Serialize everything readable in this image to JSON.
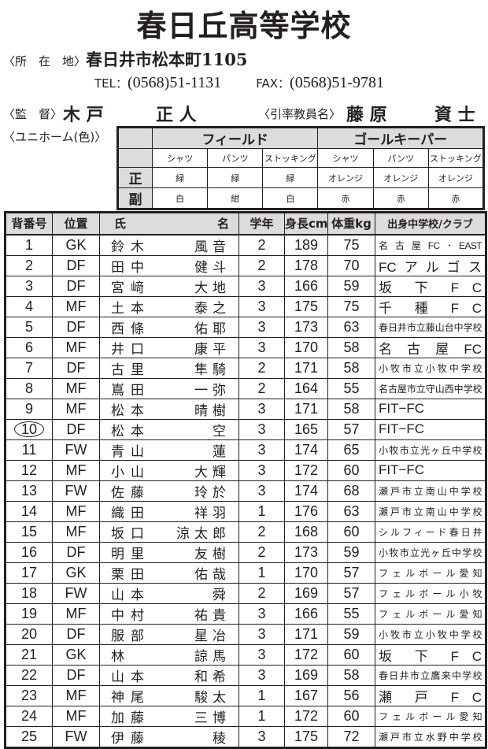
{
  "title": "春日丘高等学校",
  "address": {
    "label": "〈所　在　地〉",
    "value": "春日井市松本町1105"
  },
  "contact": {
    "tel_label": "TEL：",
    "tel": "(0568)51-1131",
    "fax_label": "FAX：",
    "fax": "(0568)51-9781"
  },
  "coach": {
    "label": "〈監　督〉",
    "family": "木 戸",
    "given": "正 人",
    "teacher_label": "〈引率教員名〉",
    "teacher_family": "藤 原",
    "teacher_given": "資 士"
  },
  "uniform": {
    "label": "〈ユニホーム(色)〉",
    "groups": [
      "フィールド",
      "ゴールキーパー"
    ],
    "items": [
      "シャツ",
      "パンツ",
      "ストッキング",
      "シャツ",
      "パンツ",
      "ストッキング"
    ],
    "rows": [
      {
        "label": "正",
        "values": [
          "緑",
          "緑",
          "緑",
          "オレンジ",
          "オレンジ",
          "オレンジ"
        ]
      },
      {
        "label": "副",
        "values": [
          "白",
          "紺",
          "白",
          "赤",
          "赤",
          "赤"
        ]
      }
    ]
  },
  "roster": {
    "headers": {
      "number": "背番号",
      "position": "位置",
      "name_family": "氏",
      "name_given": "名",
      "grade": "学年",
      "height": "身長cm",
      "weight": "体重kg",
      "club": "出身中学校/クラブ"
    },
    "captain_number": "10",
    "players": [
      {
        "no": "1",
        "pos": "GK",
        "family": "鈴木",
        "given": "風音",
        "grade": "2",
        "height": "189",
        "weight": "75",
        "club": "名古屋FC･EAST"
      },
      {
        "no": "2",
        "pos": "DF",
        "family": "田中",
        "given": "健斗",
        "grade": "2",
        "height": "178",
        "weight": "70",
        "club": "FCアルゴス"
      },
      {
        "no": "3",
        "pos": "DF",
        "family": "宮﨑",
        "given": "大地",
        "grade": "3",
        "height": "166",
        "weight": "59",
        "club": "坂 下 F C"
      },
      {
        "no": "4",
        "pos": "MF",
        "family": "土本",
        "given": "泰之",
        "grade": "3",
        "height": "175",
        "weight": "75",
        "club": "千 種 F C"
      },
      {
        "no": "5",
        "pos": "DF",
        "family": "西條",
        "given": "佑耶",
        "grade": "3",
        "height": "173",
        "weight": "63",
        "club": "春日井市立藤山台中学校"
      },
      {
        "no": "6",
        "pos": "MF",
        "family": "井口",
        "given": "康平",
        "grade": "3",
        "height": "170",
        "weight": "58",
        "club": "名古屋FC"
      },
      {
        "no": "7",
        "pos": "DF",
        "family": "古里",
        "given": "隼騎",
        "grade": "2",
        "height": "171",
        "weight": "58",
        "club": "小牧市立小牧中学校"
      },
      {
        "no": "8",
        "pos": "MF",
        "family": "嶌田",
        "given": "一弥",
        "grade": "2",
        "height": "164",
        "weight": "55",
        "club": "名古屋市立守山西中学校"
      },
      {
        "no": "9",
        "pos": "MF",
        "family": "松本",
        "given": "晴樹",
        "grade": "3",
        "height": "171",
        "weight": "58",
        "club": "FIT−FC"
      },
      {
        "no": "10",
        "pos": "DF",
        "family": "松本",
        "given": "空",
        "grade": "3",
        "height": "165",
        "weight": "57",
        "club": "FIT−FC"
      },
      {
        "no": "11",
        "pos": "FW",
        "family": "青山",
        "given": "蓮",
        "grade": "3",
        "height": "174",
        "weight": "65",
        "club": "小牧市立光ヶ丘中学校"
      },
      {
        "no": "12",
        "pos": "MF",
        "family": "小山",
        "given": "大輝",
        "grade": "3",
        "height": "172",
        "weight": "60",
        "club": "FIT−FC"
      },
      {
        "no": "13",
        "pos": "FW",
        "family": "佐藤",
        "given": "玲於",
        "grade": "3",
        "height": "174",
        "weight": "68",
        "club": "瀬戸市立南山中学校"
      },
      {
        "no": "14",
        "pos": "MF",
        "family": "織田",
        "given": "祥羽",
        "grade": "1",
        "height": "176",
        "weight": "63",
        "club": "瀬戸市立南山中学校"
      },
      {
        "no": "15",
        "pos": "MF",
        "family": "坂口",
        "given": "涼太郎",
        "grade": "2",
        "height": "168",
        "weight": "60",
        "club": "シルフィード春日井"
      },
      {
        "no": "16",
        "pos": "DF",
        "family": "明里",
        "given": "友樹",
        "grade": "2",
        "height": "173",
        "weight": "59",
        "club": "小牧市立光ヶ丘中学校"
      },
      {
        "no": "17",
        "pos": "GK",
        "family": "栗田",
        "given": "佑哉",
        "grade": "1",
        "height": "170",
        "weight": "57",
        "club": "フェルボール愛知"
      },
      {
        "no": "18",
        "pos": "FW",
        "family": "山本",
        "given": "舜",
        "grade": "2",
        "height": "169",
        "weight": "57",
        "club": "フェルボール小牧"
      },
      {
        "no": "19",
        "pos": "MF",
        "family": "中村",
        "given": "祐貴",
        "grade": "3",
        "height": "166",
        "weight": "55",
        "club": "フェルボール愛知"
      },
      {
        "no": "20",
        "pos": "DF",
        "family": "服部",
        "given": "星冶",
        "grade": "3",
        "height": "171",
        "weight": "59",
        "club": "小牧市立小牧中学校"
      },
      {
        "no": "21",
        "pos": "GK",
        "family": "林",
        "given": "諒馬",
        "grade": "3",
        "height": "172",
        "weight": "60",
        "club": "坂 下 F C"
      },
      {
        "no": "22",
        "pos": "DF",
        "family": "山本",
        "given": "和希",
        "grade": "3",
        "height": "169",
        "weight": "58",
        "club": "春日井市立鷹来中学校"
      },
      {
        "no": "23",
        "pos": "MF",
        "family": "神尾",
        "given": "駿太",
        "grade": "1",
        "height": "167",
        "weight": "56",
        "club": "瀬 戸 F C"
      },
      {
        "no": "24",
        "pos": "MF",
        "family": "加藤",
        "given": "三博",
        "grade": "1",
        "height": "172",
        "weight": "60",
        "club": "フェルボール愛知"
      },
      {
        "no": "25",
        "pos": "FW",
        "family": "伊藤",
        "given": "稜",
        "grade": "3",
        "height": "175",
        "weight": "72",
        "club": "瀬戸市立水野中学校"
      }
    ]
  }
}
